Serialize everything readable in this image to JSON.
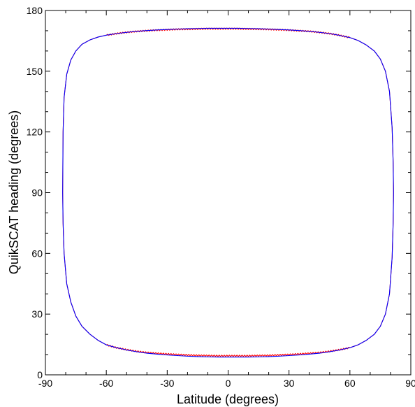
{
  "chart_data": {
    "type": "line",
    "title": "",
    "xlabel": "Latitude (degrees)",
    "ylabel": "QuikSCAT heading (degrees)",
    "xlim": [
      -90,
      90
    ],
    "ylim": [
      0,
      180
    ],
    "xticks": [
      -90,
      -60,
      -30,
      0,
      30,
      60,
      90
    ],
    "yticks": [
      0,
      30,
      60,
      90,
      120,
      150,
      180
    ],
    "minor_tick_step": 10,
    "grid": false,
    "legend": "none",
    "series": [
      {
        "color": "#ff0000",
        "style": "noisy",
        "x": [
          -81.5,
          -81.3,
          -80.8,
          -79.5,
          -77.5,
          -75,
          -72,
          -68,
          -64,
          -60,
          -55,
          -50,
          -45,
          -40,
          -35,
          -30,
          -25,
          -20,
          -15,
          -10,
          -5,
          0,
          5,
          10,
          15,
          20,
          25,
          30,
          35,
          40,
          45,
          50,
          55,
          60,
          64,
          68,
          72,
          75,
          77.5,
          79.5,
          80.8,
          81.3,
          81.5,
          81.3,
          80.8,
          79.5,
          77.5,
          75,
          72,
          68,
          64,
          60,
          55,
          50,
          45,
          40,
          35,
          30,
          25,
          20,
          15,
          10,
          5,
          0,
          -5,
          -10,
          -15,
          -20,
          -25,
          -30,
          -35,
          -40,
          -45,
          -50,
          -55,
          -60,
          -64,
          -68,
          -72,
          -75,
          -77.5,
          -79.5,
          -80.8,
          -81.3,
          -81.5
        ],
        "y": [
          90,
          120,
          137,
          148.5,
          155.5,
          160,
          163.3,
          165.5,
          166.9,
          167.8,
          168.6,
          169.2,
          169.7,
          170.0,
          170.3,
          170.5,
          170.7,
          170.8,
          170.9,
          171.0,
          171.0,
          171.0,
          171.0,
          170.9,
          170.8,
          170.7,
          170.5,
          170.3,
          170.0,
          169.7,
          169.2,
          168.6,
          167.7,
          166.6,
          165.2,
          163.0,
          160.0,
          156.0,
          150.0,
          140.0,
          122.0,
          105.0,
          90,
          75.0,
          58.0,
          40.0,
          30.0,
          24.0,
          20.0,
          17.0,
          14.8,
          13.4,
          12.4,
          11.6,
          11.0,
          10.6,
          10.3,
          10.0,
          9.8,
          9.6,
          9.5,
          9.4,
          9.4,
          9.4,
          9.4,
          9.5,
          9.6,
          9.8,
          10.0,
          10.3,
          10.6,
          11.0,
          11.6,
          12.4,
          13.4,
          14.8,
          17.0,
          20.0,
          24.0,
          29.0,
          36.0,
          45.0,
          60.0,
          75.0,
          90
        ]
      },
      {
        "color": "#0000ff",
        "style": "smooth",
        "x": [
          -81.5,
          -81.3,
          -80.8,
          -79.5,
          -77.5,
          -75,
          -72,
          -68,
          -64,
          -60,
          -55,
          -50,
          -45,
          -40,
          -35,
          -30,
          -25,
          -20,
          -15,
          -10,
          -5,
          0,
          5,
          10,
          15,
          20,
          25,
          30,
          35,
          40,
          45,
          50,
          55,
          60,
          64,
          68,
          72,
          75,
          77.5,
          79.5,
          80.8,
          81.3,
          81.5,
          81.3,
          80.8,
          79.5,
          77.5,
          75,
          72,
          68,
          64,
          60,
          55,
          50,
          45,
          40,
          35,
          30,
          25,
          20,
          15,
          10,
          5,
          0,
          -5,
          -10,
          -15,
          -20,
          -25,
          -30,
          -35,
          -40,
          -45,
          -50,
          -55,
          -60,
          -64,
          -68,
          -72,
          -75,
          -77.5,
          -79.5,
          -80.8,
          -81.3,
          -81.5
        ],
        "y": [
          90,
          120,
          137,
          148.5,
          155.5,
          160,
          163.3,
          165.5,
          166.9,
          167.8,
          168.6,
          169.2,
          169.7,
          170.1,
          170.4,
          170.6,
          170.8,
          171.0,
          171.1,
          171.2,
          171.2,
          171.2,
          171.2,
          171.1,
          171.0,
          170.8,
          170.6,
          170.4,
          170.1,
          169.7,
          169.2,
          168.6,
          167.7,
          166.6,
          165.2,
          163.0,
          160.0,
          156.0,
          150.0,
          140.0,
          122.0,
          105.0,
          90,
          75.0,
          58.0,
          40.0,
          30.0,
          24.0,
          20.0,
          17.0,
          14.8,
          13.4,
          12.3,
          11.4,
          10.7,
          10.2,
          9.8,
          9.5,
          9.2,
          9.0,
          8.9,
          8.8,
          8.8,
          8.8,
          8.8,
          8.9,
          9.0,
          9.2,
          9.5,
          9.8,
          10.2,
          10.7,
          11.4,
          12.3,
          13.4,
          14.8,
          17.0,
          20.0,
          24.0,
          29.0,
          36.0,
          45.0,
          60.0,
          75.0,
          90
        ]
      }
    ]
  }
}
